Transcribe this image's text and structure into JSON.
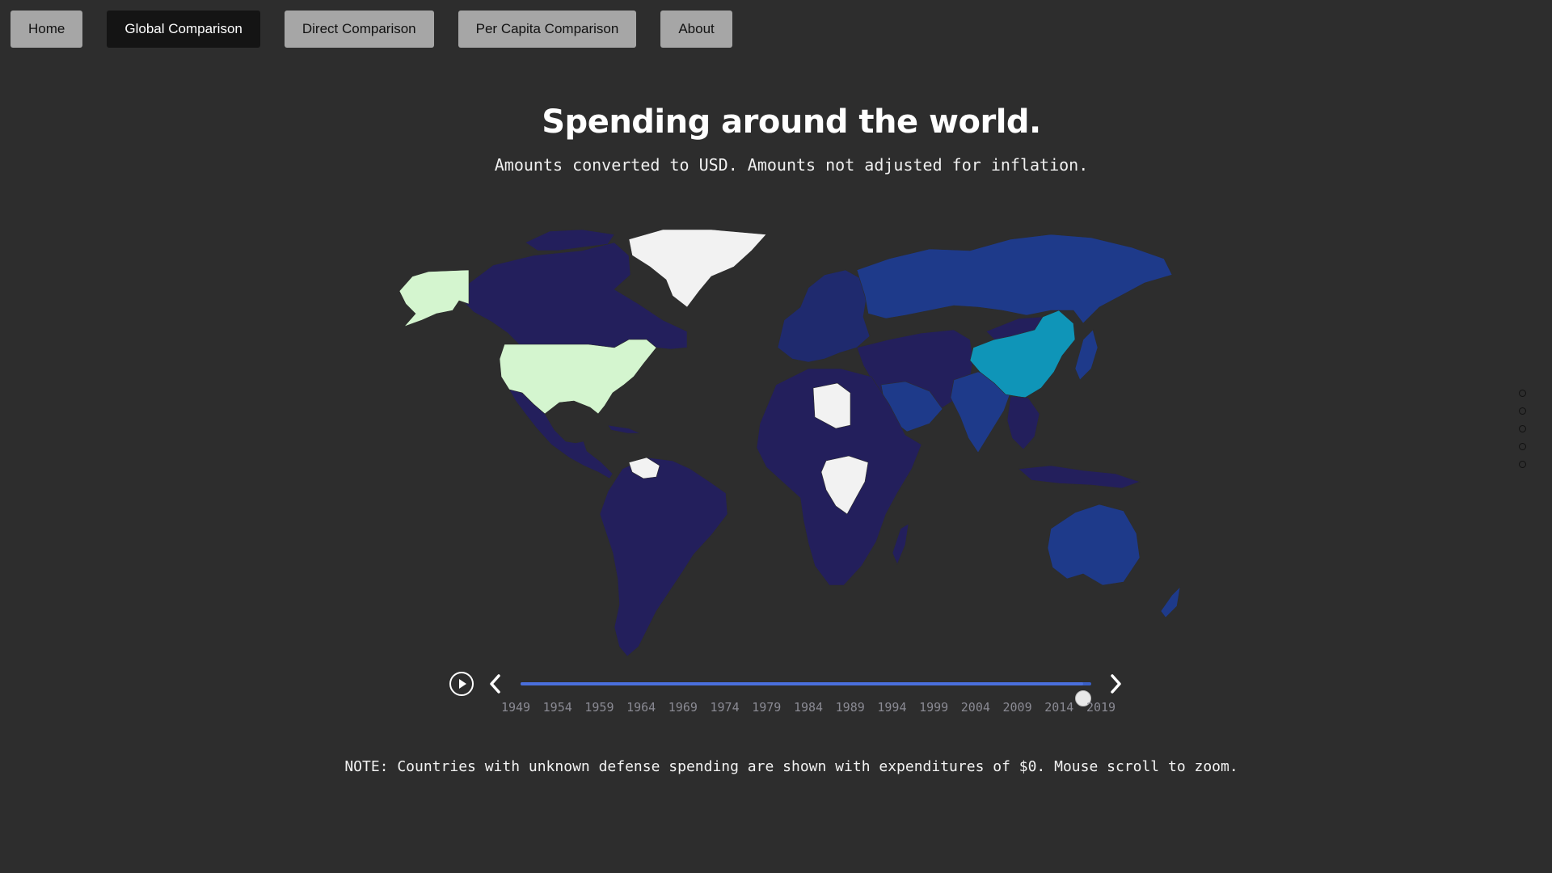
{
  "nav": {
    "items": [
      {
        "label": "Home",
        "active": false
      },
      {
        "label": "Global Comparison",
        "active": true
      },
      {
        "label": "Direct Comparison",
        "active": false
      },
      {
        "label": "Per Capita Comparison",
        "active": false
      },
      {
        "label": "About",
        "active": false
      }
    ]
  },
  "header": {
    "title": "Spending around the world.",
    "subtitle": "Amounts converted to USD. Amounts not adjusted for inflation."
  },
  "map": {
    "colors": {
      "low": "#231f5c",
      "mid_low": "#1f2a6e",
      "mid": "#1e3a8a",
      "high": "#0f95b8",
      "highest": "#d4f5cf",
      "unknown": "#f2f2f2",
      "background": "#2d2d2d"
    },
    "regions": [
      {
        "name": "United States",
        "level": "highest"
      },
      {
        "name": "Alaska",
        "level": "highest"
      },
      {
        "name": "China",
        "level": "high"
      },
      {
        "name": "Russia",
        "level": "mid"
      },
      {
        "name": "India",
        "level": "mid"
      },
      {
        "name": "Saudi Arabia",
        "level": "mid"
      },
      {
        "name": "Australia",
        "level": "mid"
      },
      {
        "name": "Greenland",
        "level": "unknown"
      },
      {
        "name": "Libya",
        "level": "unknown"
      },
      {
        "name": "Venezuela",
        "level": "unknown"
      },
      {
        "name": "Congo",
        "level": "unknown"
      }
    ]
  },
  "timeline": {
    "selected_year": 2019,
    "min_year": 1949,
    "max_year": 2020,
    "ticks": [
      "1949",
      "1954",
      "1959",
      "1964",
      "1969",
      "1974",
      "1979",
      "1984",
      "1989",
      "1994",
      "1999",
      "2004",
      "2009",
      "2014",
      "2019"
    ],
    "play_icon": "play-circle-icon",
    "prev_icon": "chevron-left-icon",
    "next_icon": "chevron-right-icon"
  },
  "footer": {
    "note": "NOTE: Countries with unknown defense spending are shown with expenditures of $0. Mouse scroll to zoom."
  },
  "section_dots": {
    "count": 5
  }
}
